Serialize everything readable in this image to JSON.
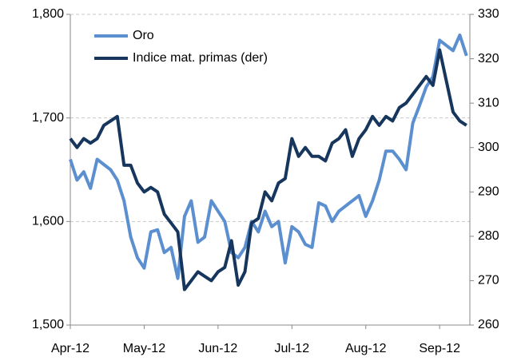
{
  "chart_data": {
    "type": "line",
    "categories": [
      "Apr-12",
      null,
      null,
      null,
      null,
      null,
      null,
      null,
      null,
      null,
      null,
      "May-12",
      null,
      null,
      null,
      null,
      null,
      null,
      null,
      null,
      null,
      null,
      "Jun-12",
      null,
      null,
      null,
      null,
      null,
      null,
      null,
      null,
      null,
      null,
      "Jul-12",
      null,
      null,
      null,
      null,
      null,
      null,
      null,
      null,
      null,
      null,
      "Aug-12",
      null,
      null,
      null,
      null,
      null,
      null,
      null,
      null,
      null,
      null,
      "Sep-12",
      null,
      null,
      null,
      null
    ],
    "series": [
      {
        "name": "Oro",
        "color": "#5b8fd0",
        "values": [
          1660,
          1640,
          1648,
          1632,
          1660,
          1655,
          1650,
          1640,
          1620,
          1585,
          1565,
          1555,
          1590,
          1592,
          1570,
          1575,
          1545,
          1605,
          1620,
          1580,
          1585,
          1620,
          1610,
          1600,
          1570,
          1565,
          1575,
          1600,
          1590,
          1610,
          1595,
          1600,
          1560,
          1595,
          1590,
          1578,
          1575,
          1618,
          1615,
          1600,
          1610,
          1615,
          1620,
          1625,
          1605,
          1620,
          1640,
          1668,
          1668,
          1660,
          1650,
          1695,
          1712,
          1730,
          1740,
          1775,
          1770,
          1765,
          1780,
          1760
        ]
      },
      {
        "name": "Indice mat. primas (der)",
        "color": "#17365d",
        "axis": "y2",
        "values": [
          302,
          300,
          302,
          301,
          302,
          305,
          306,
          307,
          296,
          296,
          292,
          290,
          291,
          290,
          285,
          283,
          281,
          268,
          270,
          272,
          271,
          270,
          272,
          273,
          279,
          269,
          272,
          283,
          284,
          290,
          288,
          292,
          293,
          302,
          298,
          300,
          298,
          298,
          297,
          301,
          302,
          304,
          298,
          302,
          304,
          307,
          305,
          307,
          306,
          309,
          310,
          312,
          314,
          316,
          314,
          322,
          315,
          308,
          306,
          305
        ]
      }
    ],
    "ylim": [
      1500,
      1800
    ],
    "yticks": [
      {
        "value": 1500,
        "label": "1,500"
      },
      {
        "value": 1600,
        "label": "1,600"
      },
      {
        "value": 1700,
        "label": "1,700"
      },
      {
        "value": 1800,
        "label": "1,800"
      }
    ],
    "y2lim": [
      260,
      330
    ],
    "y2ticks": [
      260,
      270,
      280,
      290,
      300,
      310,
      320,
      330
    ],
    "grid": true,
    "legend": "upper left"
  }
}
